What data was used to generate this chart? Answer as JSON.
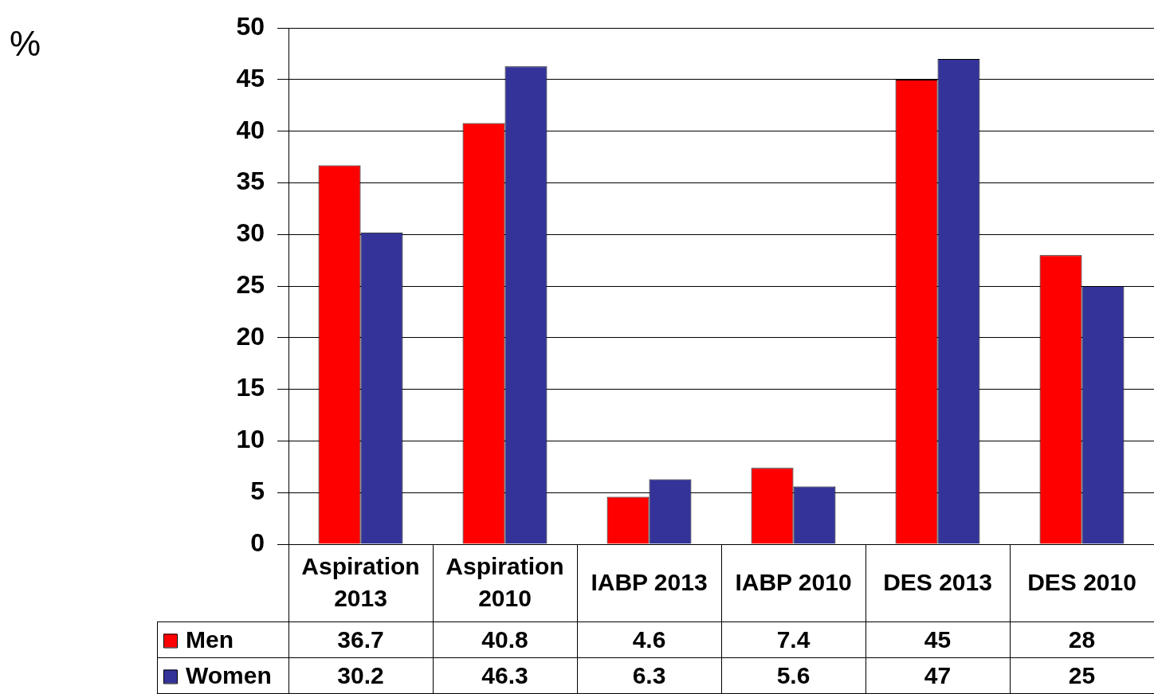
{
  "chart_data": {
    "type": "bar",
    "annotations": [
      "%"
    ],
    "categories": [
      "Aspiration 2013",
      "Aspiration 2010",
      "IABP 2013",
      "IABP 2010",
      "DES 2013",
      "DES 2010"
    ],
    "series": [
      {
        "name": "Men",
        "color": "#ff0000",
        "values": [
          36.7,
          40.8,
          4.6,
          7.4,
          45,
          28
        ]
      },
      {
        "name": "Women",
        "color": "#333399",
        "values": [
          30.2,
          46.3,
          6.3,
          5.6,
          47,
          25
        ]
      }
    ],
    "ylim": [
      0,
      50
    ],
    "yticks": [
      0,
      5,
      10,
      15,
      20,
      25,
      30,
      35,
      40,
      45,
      50
    ],
    "grid": "y",
    "legend": "bottom left",
    "data_labels": true
  }
}
